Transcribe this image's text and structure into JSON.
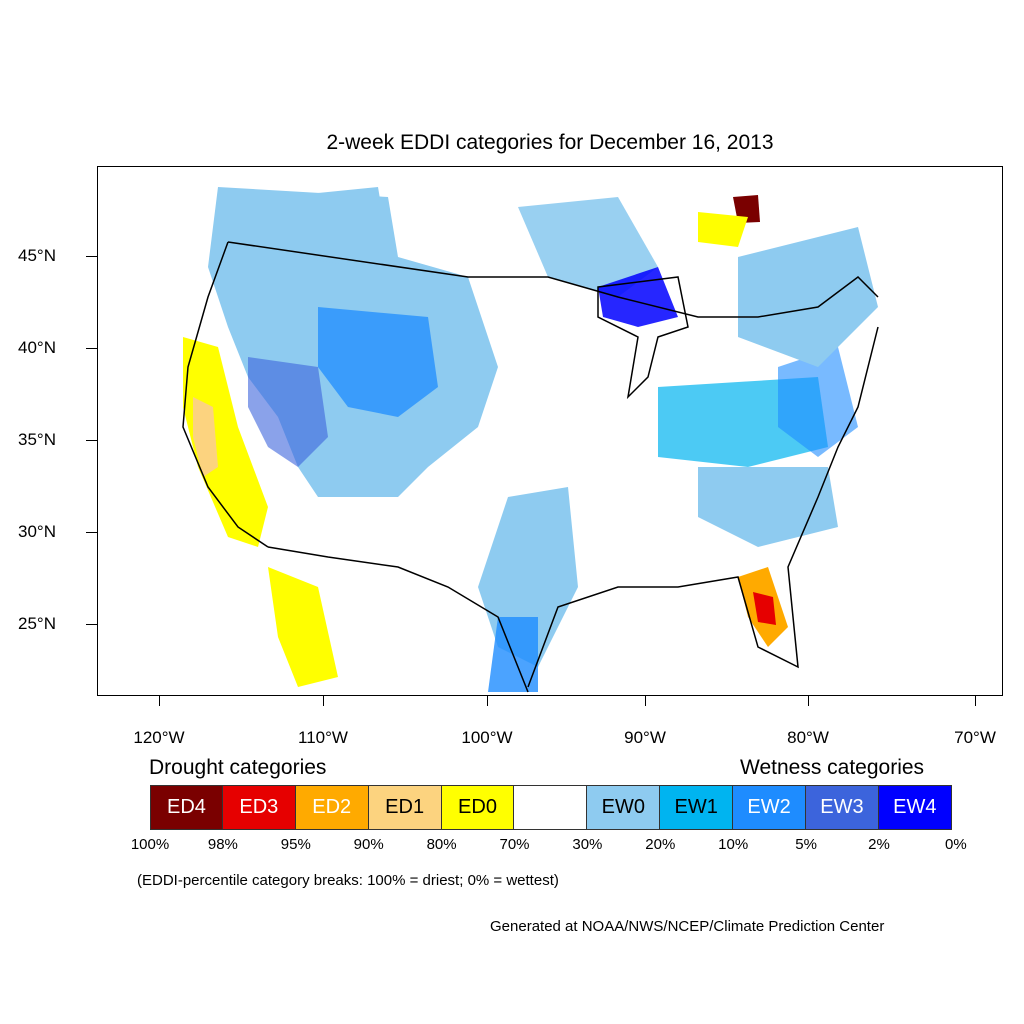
{
  "title": "2-week EDDI categories for December 16, 2013",
  "lat_labels": [
    "45°N",
    "40°N",
    "35°N",
    "30°N",
    "25°N"
  ],
  "lon_labels": [
    "120°W",
    "110°W",
    "100°W",
    "90°W",
    "80°W",
    "70°W"
  ],
  "legend": {
    "drought_heading": "Drought categories",
    "wetness_heading": "Wetness categories",
    "categories": [
      {
        "label": "ED4",
        "color": "#7a0000",
        "text_color": "#ffffff"
      },
      {
        "label": "ED3",
        "color": "#e60000",
        "text_color": "#ffffff"
      },
      {
        "label": "ED2",
        "color": "#ffaa00",
        "text_color": "#ffffff"
      },
      {
        "label": "ED1",
        "color": "#fcd37f",
        "text_color": "#000000"
      },
      {
        "label": "ED0",
        "color": "#ffff00",
        "text_color": "#000000"
      },
      {
        "label": "",
        "color": "#ffffff",
        "text_color": "#000000"
      },
      {
        "label": "EW0",
        "color": "#8ecbf0",
        "text_color": "#000000"
      },
      {
        "label": "EW1",
        "color": "#00b4f0",
        "text_color": "#000000"
      },
      {
        "label": "EW2",
        "color": "#1e8cff",
        "text_color": "#ffffff"
      },
      {
        "label": "EW3",
        "color": "#3c64dc",
        "text_color": "#ffffff"
      },
      {
        "label": "EW4",
        "color": "#0000ff",
        "text_color": "#ffffff"
      }
    ],
    "percentiles": [
      "100%",
      "98%",
      "95%",
      "90%",
      "80%",
      "70%",
      "30%",
      "20%",
      "10%",
      "5%",
      "2%",
      "0%"
    ],
    "note": "(EDDI-percentile category breaks: 100% = driest; 0% = wettest)"
  },
  "credit": "Generated at NOAA/NWS/NCEP/Climate Prediction Center"
}
